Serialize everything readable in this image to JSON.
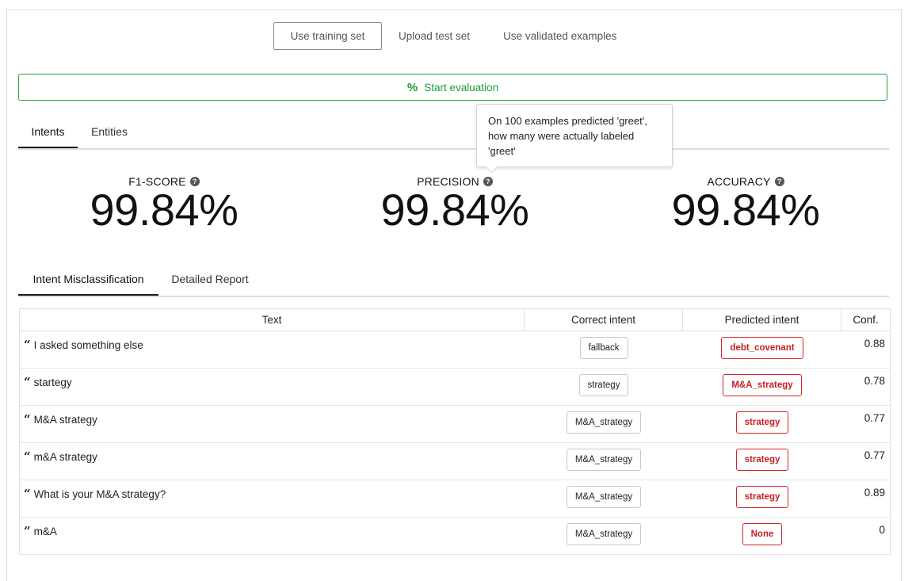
{
  "source_tabs": [
    "Use training set",
    "Upload test set",
    "Use validated examples"
  ],
  "start_button": {
    "icon": "percent-icon",
    "label": "Start evaluation",
    "accent": "#21a037"
  },
  "main_tabs": [
    "Intents",
    "Entities"
  ],
  "metrics": [
    {
      "label": "F1-SCORE",
      "value": "99.84%"
    },
    {
      "label": "PRECISION",
      "value": "99.84%"
    },
    {
      "label": "ACCURACY",
      "value": "99.84%"
    }
  ],
  "tooltip": "On 100 examples predicted 'greet', how many were actually labeled 'greet'",
  "report_tabs": [
    "Intent Misclassification",
    "Detailed Report"
  ],
  "table": {
    "headers": [
      "Text",
      "Correct intent",
      "Predicted intent",
      "Conf."
    ],
    "rows": [
      {
        "text": "I asked something else",
        "correct": "fallback",
        "predicted": "debt_covenant",
        "conf": "0.88"
      },
      {
        "text": "startegy",
        "correct": "strategy",
        "predicted": "M&A_strategy",
        "conf": "0.78"
      },
      {
        "text": "M&A strategy",
        "correct": "M&A_strategy",
        "predicted": "strategy",
        "conf": "0.77"
      },
      {
        "text": "m&A strategy",
        "correct": "M&A_strategy",
        "predicted": "strategy",
        "conf": "0.77"
      },
      {
        "text": "What is your M&A strategy?",
        "correct": "M&A_strategy",
        "predicted": "strategy",
        "conf": "0.89"
      },
      {
        "text": "m&A",
        "correct": "M&A_strategy",
        "predicted": "None",
        "conf": "0"
      }
    ]
  },
  "colors": {
    "error": "#d0262b",
    "success": "#21a037"
  }
}
